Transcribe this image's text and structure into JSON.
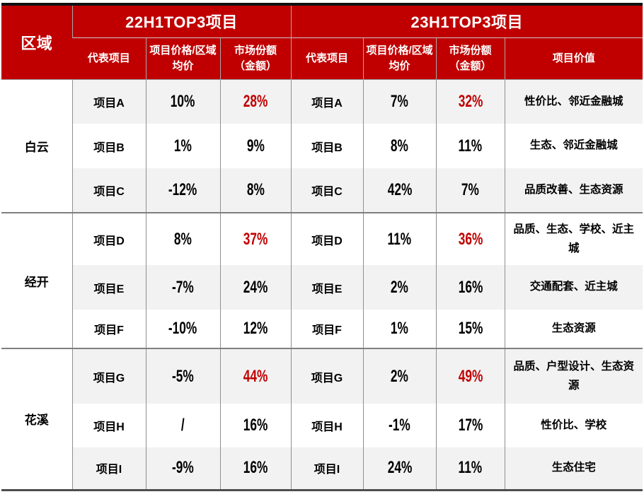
{
  "colors": {
    "header_bg": "#c00000",
    "highlight_red": "#c00000",
    "stripe_bg": "#f2f2f2",
    "body_text": "#000000",
    "grid_line": "#8f8f8f",
    "group_divider": "#7f7f7f",
    "top_border": "#101010",
    "bottom_border": "#4d4d4d"
  },
  "chart_data": {
    "type": "table",
    "header": {
      "region": "区域",
      "group_2022": "22H1TOP3项目",
      "group_2023": "23H1TOP3项目",
      "col_project": "代表项目",
      "col_price": "项目价格/区域均价",
      "col_share": "市场份额\n（金额）",
      "col_value": "项目价值"
    },
    "rows": [
      {
        "region": "白云",
        "p22": "项目A",
        "price22": "10%",
        "share22": "28%",
        "share22_hot": true,
        "p23": "项目A",
        "price23": "7%",
        "share23": "32%",
        "share23_hot": true,
        "value": "性价比、邻近金融城"
      },
      {
        "p22": "项目B",
        "price22": "1%",
        "share22": "9%",
        "share22_hot": false,
        "p23": "项目B",
        "price23": "8%",
        "share23": "11%",
        "share23_hot": false,
        "value": "生态、邻近金融城"
      },
      {
        "p22": "项目C",
        "price22": "-12%",
        "share22": "8%",
        "share22_hot": false,
        "p23": "项目C",
        "price23": "42%",
        "share23": "7%",
        "share23_hot": false,
        "value": "品质改善、生态资源"
      },
      {
        "region": "经开",
        "p22": "项目D",
        "price22": "8%",
        "share22": "37%",
        "share22_hot": true,
        "p23": "项目D",
        "price23": "11%",
        "share23": "36%",
        "share23_hot": true,
        "value": "品质、生态、学校、近主城"
      },
      {
        "p22": "项目E",
        "price22": "-7%",
        "share22": "24%",
        "share22_hot": false,
        "p23": "项目E",
        "price23": "2%",
        "share23": "16%",
        "share23_hot": false,
        "value": "交通配套、近主城"
      },
      {
        "p22": "项目F",
        "price22": "-10%",
        "share22": "12%",
        "share22_hot": false,
        "p23": "项目F",
        "price23": "1%",
        "share23": "15%",
        "share23_hot": false,
        "value": "生态资源"
      },
      {
        "region": "花溪",
        "p22": "项目G",
        "price22": "-5%",
        "share22": "44%",
        "share22_hot": true,
        "p23": "项目G",
        "price23": "2%",
        "share23": "49%",
        "share23_hot": true,
        "value": "品质、户型设计、生态资源"
      },
      {
        "p22": "项目H",
        "price22": "/",
        "share22": "16%",
        "share22_hot": false,
        "p23": "项目H",
        "price23": "-1%",
        "share23": "17%",
        "share23_hot": false,
        "value": "性价比、学校"
      },
      {
        "p22": "项目I",
        "price22": "-9%",
        "share22": "16%",
        "share22_hot": false,
        "p23": "项目I",
        "price23": "24%",
        "share23": "11%",
        "share23_hot": false,
        "value": "生态住宅"
      }
    ]
  }
}
